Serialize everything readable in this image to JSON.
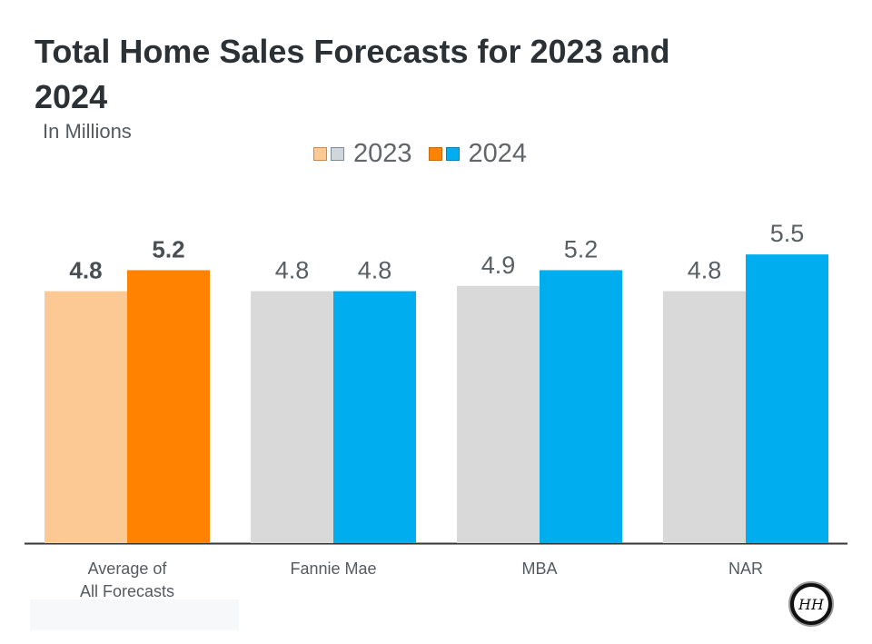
{
  "chart_data": {
    "type": "bar",
    "title": "Total Home Sales Forecasts for 2023 and 2024",
    "subtitle": "In Millions",
    "categories": [
      "Average of\nAll Forecasts",
      "Fannie Mae",
      "MBA",
      "NAR"
    ],
    "series": [
      {
        "name": "2023",
        "values": [
          4.8,
          4.8,
          4.9,
          4.8
        ],
        "colors": [
          "#fcc995",
          "#d9d9d9",
          "#d9d9d9",
          "#d9d9d9"
        ]
      },
      {
        "name": "2024",
        "values": [
          5.2,
          4.8,
          5.2,
          5.5
        ],
        "colors": [
          "#ff8200",
          "#00aeef",
          "#00aeef",
          "#00aeef"
        ]
      }
    ],
    "value_labels": [
      [
        "4.8",
        "5.2"
      ],
      [
        "4.8",
        "4.8"
      ],
      [
        "4.9",
        "5.2"
      ],
      [
        "4.8",
        "5.5"
      ]
    ],
    "bold_labels_category": 0,
    "ylim": [
      0,
      5.85
    ],
    "legend_position": "top-center",
    "grid": false
  },
  "legend": {
    "label_2023": "2023",
    "label_2024": "2024",
    "swatch_2023": [
      "#fcc995",
      "#d0d7dc"
    ],
    "swatch_2024": [
      "#ff8200",
      "#00aeef"
    ]
  },
  "logo": {
    "monogram": "HH"
  }
}
